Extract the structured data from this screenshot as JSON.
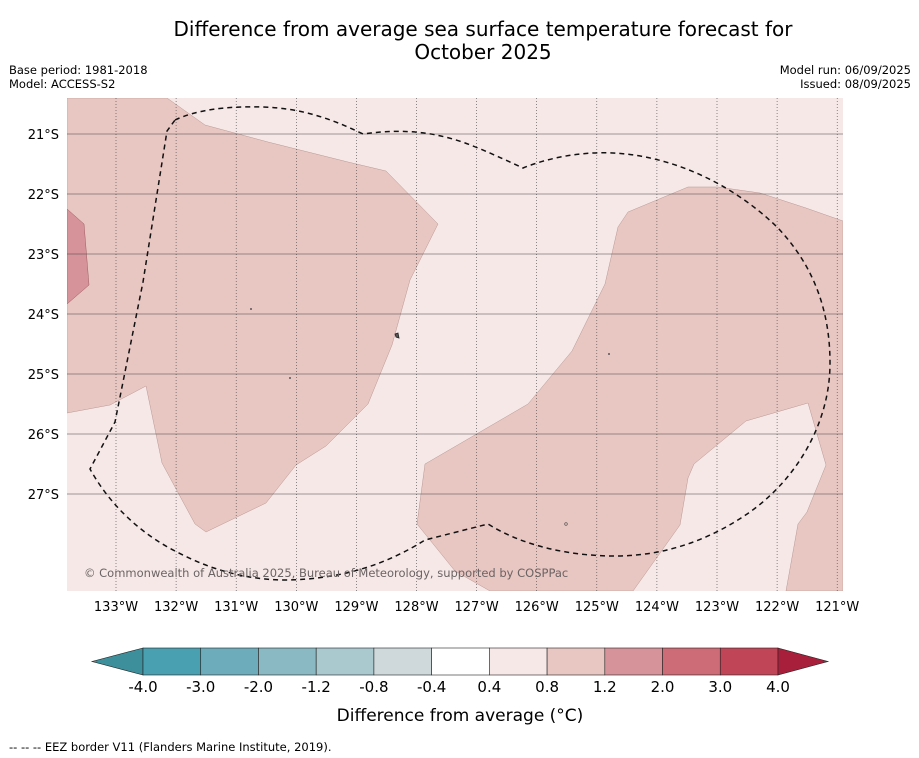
{
  "title_line1": "Difference from average sea surface temperature forecast for",
  "title_line2": "October 2025",
  "base_period": "Base period: 1981-2018",
  "model": "Model: ACCESS-S2",
  "model_run": "Model run: 06/09/2025",
  "issued": "Issued: 08/09/2025",
  "lat_labels": [
    "21°S",
    "22°S",
    "23°S",
    "24°S",
    "25°S",
    "26°S",
    "27°S"
  ],
  "lon_labels": [
    "133°W",
    "132°W",
    "131°W",
    "130°W",
    "129°W",
    "128°W",
    "127°W",
    "126°W",
    "125°W",
    "124°W",
    "123°W",
    "122°W",
    "121°W"
  ],
  "watermark": "© Commonwealth of Australia 2025, Bureau of Meteorology, supported by COSPPac",
  "colorbar": {
    "label": "Difference from average (°C)",
    "ticks": [
      "-4.0",
      "-3.0",
      "-2.0",
      "-1.2",
      "-0.8",
      "-0.4",
      "0.4",
      "0.8",
      "1.2",
      "2.0",
      "3.0",
      "4.0"
    ],
    "colors": [
      "#3d8f9b",
      "#49a0b1",
      "#6dadbb",
      "#8ab8c3",
      "#a9c9ce",
      "#cfd9dc",
      "#ffffff",
      "#f6e8e7",
      "#e8c6c2",
      "#d7939a",
      "#cd6b76",
      "#c04657",
      "#a81f3b"
    ]
  },
  "map_fill_colors": {
    "band_0_4_0_8": "#f6e8e7",
    "band_0_8_1_2": "#e8c6c2",
    "band_1_2_2_0": "#d7939a"
  },
  "footnote": "-- -- -- EEZ border V11 (Flanders Marine Institute, 2019)."
}
